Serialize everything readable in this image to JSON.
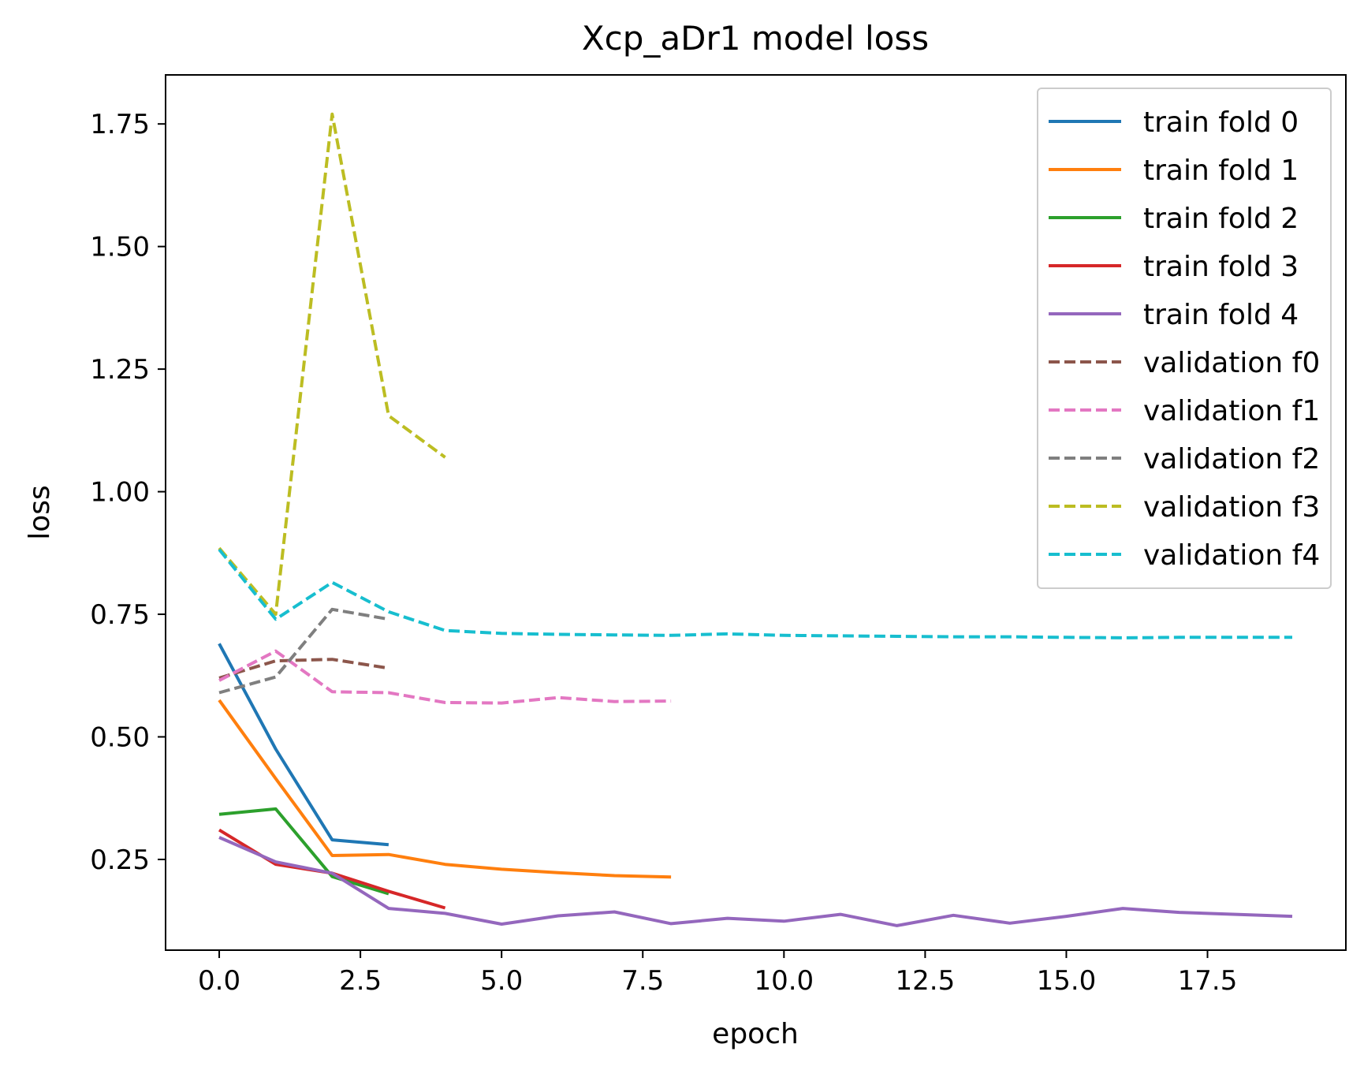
{
  "chart_data": {
    "type": "line",
    "title": "Xcp_aDr1 model loss",
    "xlabel": "epoch",
    "ylabel": "loss",
    "xlim": [
      -0.95,
      19.95
    ],
    "ylim": [
      0.065,
      1.85
    ],
    "xticks": [
      0.0,
      2.5,
      5.0,
      7.5,
      10.0,
      12.5,
      15.0,
      17.5
    ],
    "xtick_labels": [
      "0.0",
      "2.5",
      "5.0",
      "7.5",
      "10.0",
      "12.5",
      "15.0",
      "17.5"
    ],
    "yticks": [
      0.25,
      0.5,
      0.75,
      1.0,
      1.25,
      1.5,
      1.75
    ],
    "ytick_labels": [
      "0.25",
      "0.50",
      "0.75",
      "1.00",
      "1.25",
      "1.50",
      "1.75"
    ],
    "grid": false,
    "legend_position": "top-right",
    "series": [
      {
        "name": "train fold 0",
        "color": "#1f77b4",
        "style": "solid",
        "x": [
          0,
          1,
          2,
          3
        ],
        "y": [
          0.69,
          0.475,
          0.29,
          0.28
        ]
      },
      {
        "name": "train fold 1",
        "color": "#ff7f0e",
        "style": "solid",
        "x": [
          0,
          1,
          2,
          3,
          4,
          5,
          6,
          7,
          8
        ],
        "y": [
          0.575,
          0.415,
          0.258,
          0.26,
          0.24,
          0.23,
          0.223,
          0.217,
          0.214
        ]
      },
      {
        "name": "train fold 2",
        "color": "#2ca02c",
        "style": "solid",
        "x": [
          0,
          1,
          2,
          3
        ],
        "y": [
          0.342,
          0.353,
          0.215,
          0.18
        ]
      },
      {
        "name": "train fold 3",
        "color": "#d62728",
        "style": "solid",
        "x": [
          0,
          1,
          2,
          3,
          4
        ],
        "y": [
          0.31,
          0.24,
          0.222,
          0.185,
          0.151
        ]
      },
      {
        "name": "train fold 4",
        "color": "#9467bd",
        "style": "solid",
        "x": [
          0,
          1,
          2,
          3,
          4,
          5,
          6,
          7,
          8,
          9,
          10,
          11,
          12,
          13,
          14,
          15,
          16,
          17,
          18,
          19
        ],
        "y": [
          0.295,
          0.245,
          0.222,
          0.15,
          0.14,
          0.118,
          0.135,
          0.143,
          0.119,
          0.13,
          0.124,
          0.138,
          0.115,
          0.136,
          0.12,
          0.134,
          0.15,
          0.142,
          0.138,
          0.134
        ]
      },
      {
        "name": "validation f0",
        "color": "#8c564b",
        "style": "dashed",
        "x": [
          0,
          1,
          2,
          3
        ],
        "y": [
          0.62,
          0.655,
          0.658,
          0.64
        ]
      },
      {
        "name": "validation f1",
        "color": "#e377c2",
        "style": "dashed",
        "x": [
          0,
          1,
          2,
          3,
          4,
          5,
          6,
          7,
          8
        ],
        "y": [
          0.615,
          0.675,
          0.592,
          0.59,
          0.57,
          0.569,
          0.58,
          0.572,
          0.573
        ]
      },
      {
        "name": "validation f2",
        "color": "#7f7f7f",
        "style": "dashed",
        "x": [
          0,
          1,
          2,
          3
        ],
        "y": [
          0.59,
          0.622,
          0.76,
          0.74
        ]
      },
      {
        "name": "validation f3",
        "color": "#bcbd22",
        "style": "dashed",
        "x": [
          0,
          1,
          2,
          3,
          4
        ],
        "y": [
          0.885,
          0.75,
          1.77,
          1.155,
          1.07
        ]
      },
      {
        "name": "validation f4",
        "color": "#17becf",
        "style": "dashed",
        "x": [
          0,
          1,
          2,
          3,
          4,
          5,
          6,
          7,
          8,
          9,
          10,
          11,
          12,
          13,
          14,
          15,
          16,
          17,
          18,
          19
        ],
        "y": [
          0.882,
          0.74,
          0.815,
          0.755,
          0.717,
          0.711,
          0.709,
          0.708,
          0.707,
          0.71,
          0.707,
          0.706,
          0.705,
          0.704,
          0.704,
          0.703,
          0.702,
          0.703,
          0.703,
          0.703
        ]
      }
    ]
  }
}
